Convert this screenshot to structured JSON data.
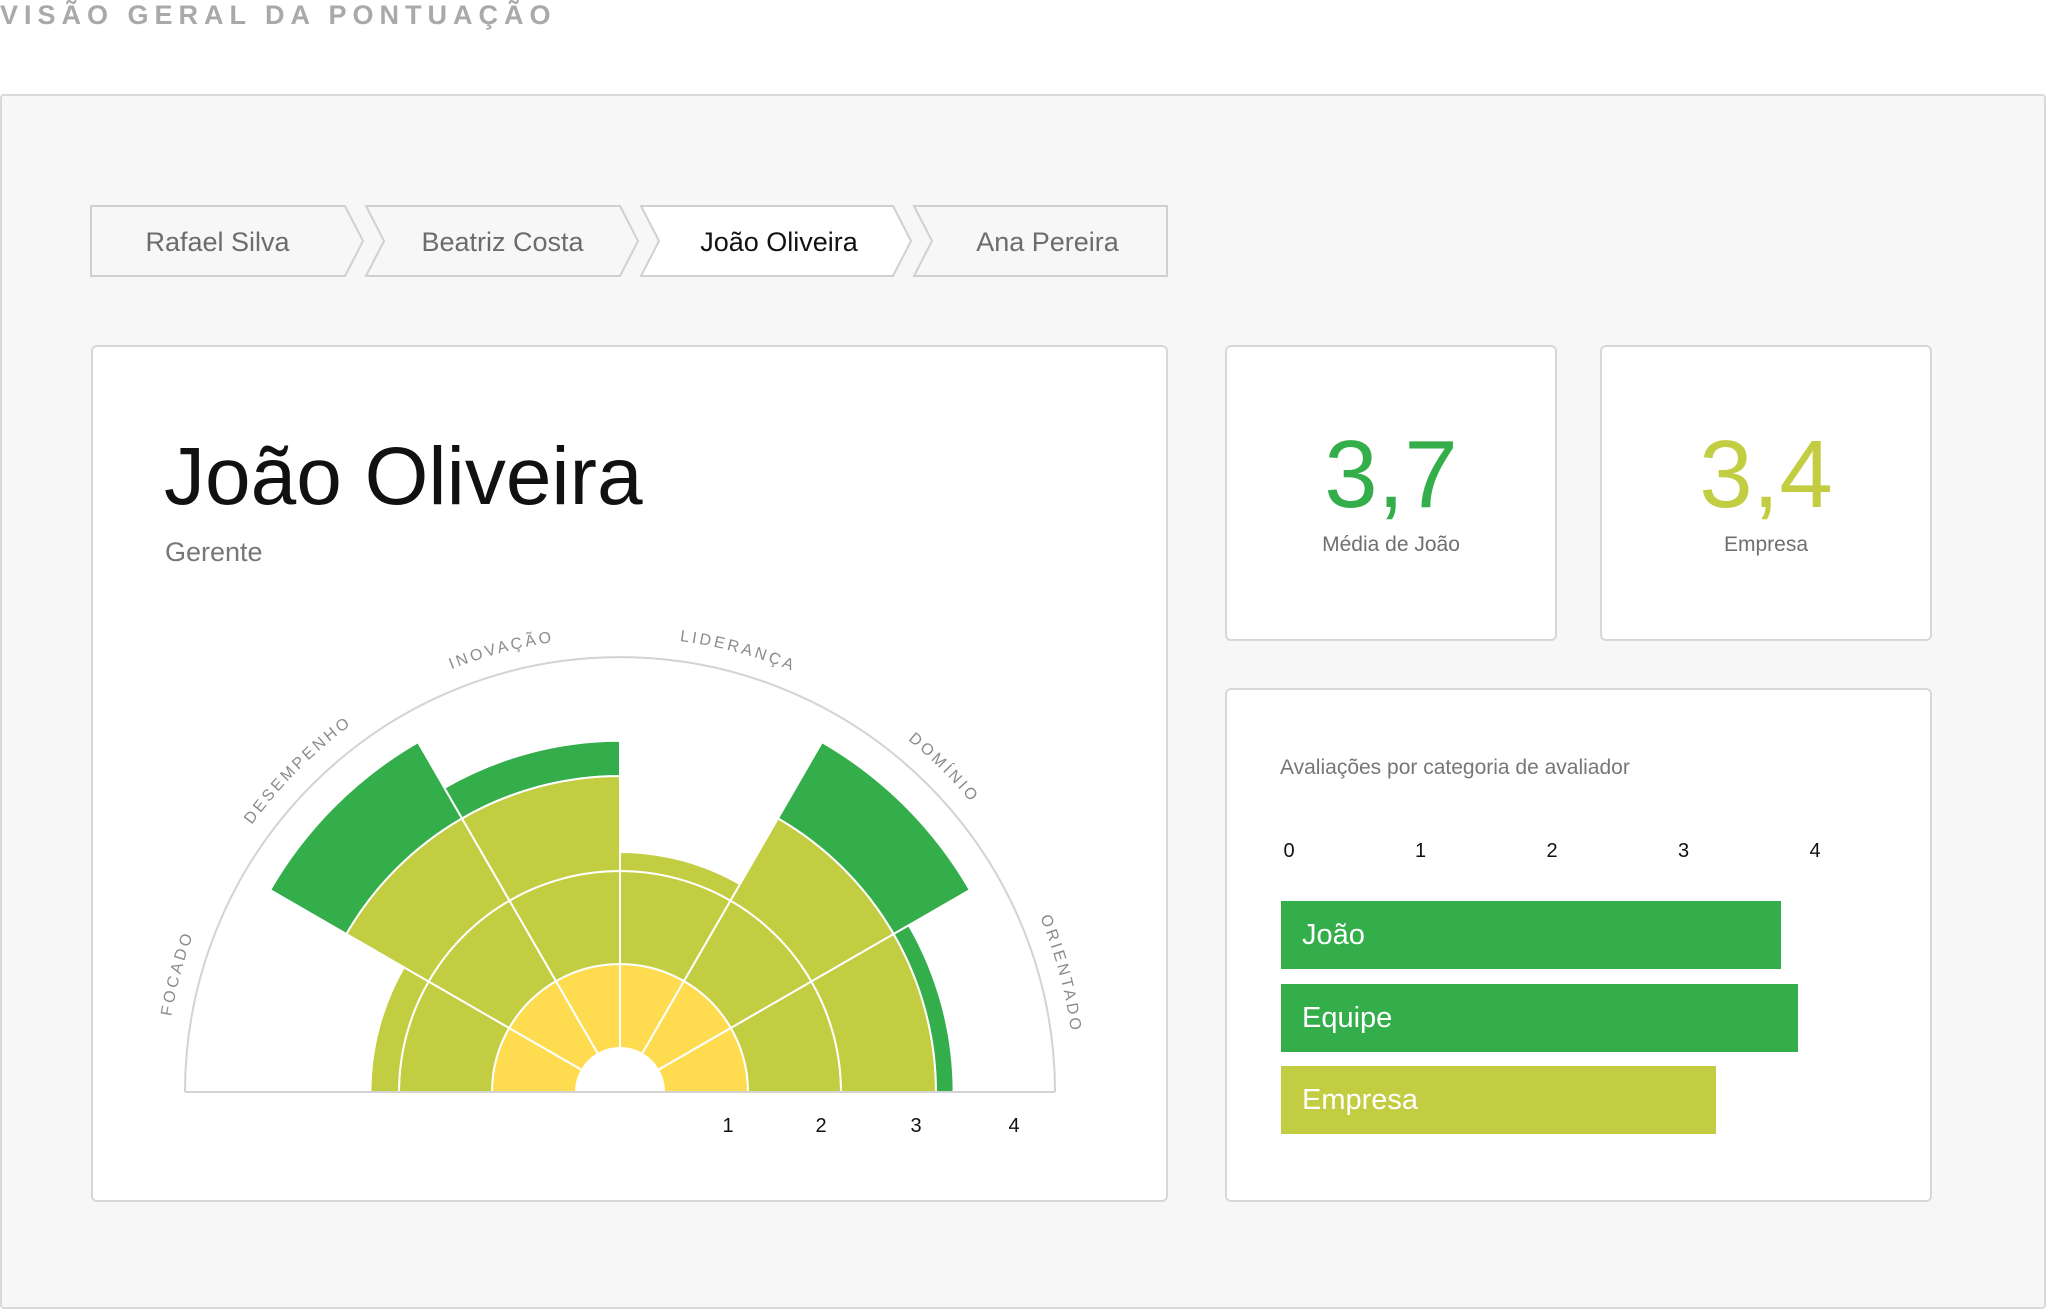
{
  "page": {
    "heading": "VISÃO GERAL DA PONTUAÇÃO"
  },
  "tabs": [
    {
      "label": "Rafael Silva",
      "active": false
    },
    {
      "label": "Beatriz Costa",
      "active": false
    },
    {
      "label": "João Oliveira",
      "active": true
    },
    {
      "label": "Ana Pereira",
      "active": false
    }
  ],
  "profile": {
    "name": "João Oliveira",
    "role": "Gerente"
  },
  "stats": {
    "average": {
      "value": "3,7",
      "label": "Média de João",
      "color": "#34ad4b"
    },
    "company": {
      "value": "3,4",
      "label": "Empresa",
      "color": "#c3cd42"
    }
  },
  "colors": {
    "green": "#34ad4b",
    "yellow_green": "#c3cd42",
    "yellow": "#fedb4f"
  },
  "chart_data": [
    {
      "type": "polar-area",
      "categories": [
        "FOCADO",
        "DESEMPENHO",
        "INOVAÇÃO",
        "LIDERANÇA",
        "DOMÍNIO",
        "ORIENTADO"
      ],
      "values": [
        2.3,
        4,
        3.4,
        2.2,
        4,
        3.2
      ],
      "rlim": [
        0,
        4
      ],
      "ring_labels": [
        "1",
        "2",
        "3",
        "4"
      ]
    },
    {
      "type": "bar",
      "orientation": "horizontal",
      "title": "Avaliações por categoria de avaliador",
      "categories": [
        "João",
        "Equipe",
        "Empresa"
      ],
      "values": [
        3.77,
        3.9,
        3.28
      ],
      "xlim": [
        0,
        4
      ],
      "ticks": [
        "0",
        "1",
        "2",
        "3",
        "4"
      ],
      "colors": [
        "#34ad4b",
        "#34ad4b",
        "#c3cd42"
      ]
    }
  ]
}
